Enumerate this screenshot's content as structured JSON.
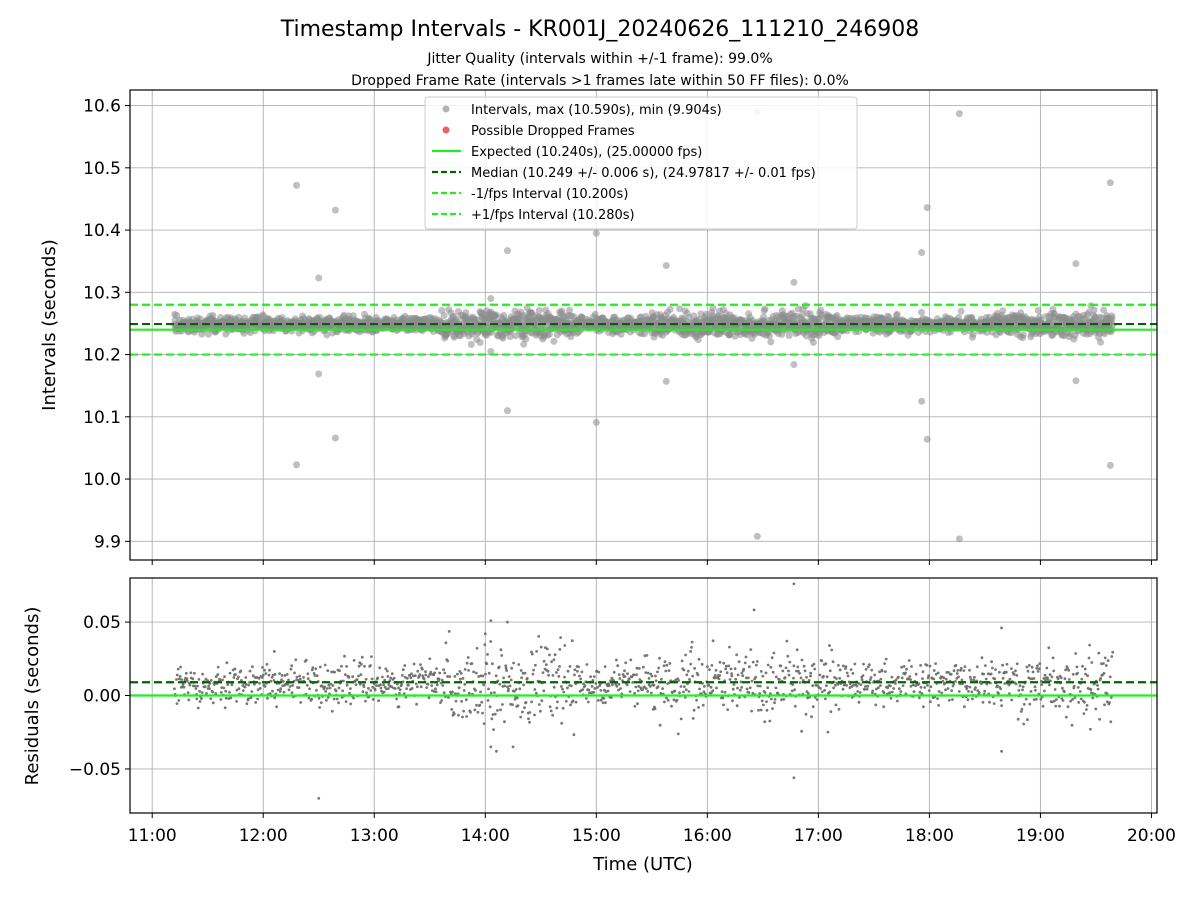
{
  "chart_data": [
    {
      "type": "scatter",
      "title": "Timestamp Intervals - KR001J_20240626_111210_246908",
      "subtitles": [
        "Jitter Quality (intervals within +/-1 frame): 99.0%",
        "Dropped Frame Rate (intervals >1 frames late within 50 FF files): 0.0%"
      ],
      "ylabel": "Intervals (seconds)",
      "xlim": [
        10.8,
        20.05
      ],
      "ylim": [
        9.87,
        10.625
      ],
      "yticks": [
        "9.9",
        "10.0",
        "10.1",
        "10.2",
        "10.3",
        "10.4",
        "10.5",
        "10.6"
      ],
      "ytick_values": [
        9.9,
        10.0,
        10.1,
        10.2,
        10.3,
        10.4,
        10.5,
        10.6
      ],
      "xtick_values": [
        11,
        12,
        13,
        14,
        15,
        16,
        17,
        18,
        19,
        20
      ],
      "grid": true,
      "legend_position": "top-center",
      "legend": [
        {
          "label": "Intervals, max (10.590s), min (9.904s)",
          "kind": "marker",
          "color": "#a0a0a0"
        },
        {
          "label": "Possible Dropped Frames",
          "kind": "marker",
          "color": "#ef6060"
        },
        {
          "label": "Expected (10.240s), (25.00000 fps)",
          "kind": "solid",
          "color": "#22ee22"
        },
        {
          "label": "Median (10.249 +/- 0.006 s), (24.97817 +/- 0.01 fps)",
          "kind": "dashed",
          "color": "#006400"
        },
        {
          "label": "-1/fps Interval (10.200s)",
          "kind": "dashed",
          "color": "#22ee22"
        },
        {
          "label": "+1/fps Interval (10.280s)",
          "kind": "dashed",
          "color": "#22ee22"
        }
      ],
      "lines": [
        {
          "name": "Expected",
          "y": 10.24,
          "style": "solid",
          "color": "#22ee22"
        },
        {
          "name": "Median",
          "y": 10.249,
          "style": "dashed",
          "color": "#006400"
        },
        {
          "name": "-1/fps Interval",
          "y": 10.2,
          "style": "dashed",
          "color": "#22ee22"
        },
        {
          "name": "+1/fps Interval",
          "y": 10.28,
          "style": "dashed",
          "color": "#22ee22"
        }
      ],
      "band": {
        "x_start": 11.2,
        "x_end": 19.65,
        "center": 10.248,
        "spread": 0.006
      },
      "outliers": [
        {
          "x": 12.3,
          "y": 10.472
        },
        {
          "x": 12.3,
          "y": 10.023
        },
        {
          "x": 12.5,
          "y": 10.323
        },
        {
          "x": 12.5,
          "y": 10.169
        },
        {
          "x": 12.65,
          "y": 10.432
        },
        {
          "x": 12.65,
          "y": 10.066
        },
        {
          "x": 14.05,
          "y": 10.29
        },
        {
          "x": 14.05,
          "y": 10.205
        },
        {
          "x": 14.2,
          "y": 10.367
        },
        {
          "x": 14.2,
          "y": 10.11
        },
        {
          "x": 15.0,
          "y": 10.395
        },
        {
          "x": 15.0,
          "y": 10.091
        },
        {
          "x": 15.63,
          "y": 10.343
        },
        {
          "x": 15.63,
          "y": 10.157
        },
        {
          "x": 16.45,
          "y": 10.59
        },
        {
          "x": 16.45,
          "y": 9.908
        },
        {
          "x": 16.78,
          "y": 10.316
        },
        {
          "x": 16.78,
          "y": 10.184
        },
        {
          "x": 17.93,
          "y": 10.364
        },
        {
          "x": 17.93,
          "y": 10.125
        },
        {
          "x": 17.98,
          "y": 10.436
        },
        {
          "x": 17.98,
          "y": 10.064
        },
        {
          "x": 18.27,
          "y": 10.587
        },
        {
          "x": 18.27,
          "y": 9.904
        },
        {
          "x": 19.32,
          "y": 10.346
        },
        {
          "x": 19.32,
          "y": 10.158
        },
        {
          "x": 19.63,
          "y": 10.476
        },
        {
          "x": 19.63,
          "y": 10.022
        }
      ]
    },
    {
      "type": "scatter",
      "xlabel": "Time (UTC)",
      "ylabel": "Residuals (seconds)",
      "xlim": [
        10.8,
        20.05
      ],
      "ylim": [
        -0.08,
        0.08
      ],
      "yticks": [
        "−0.05",
        "0.00",
        "0.05"
      ],
      "ytick_values": [
        -0.05,
        0.0,
        0.05
      ],
      "xticks": [
        "11:00",
        "12:00",
        "13:00",
        "14:00",
        "15:00",
        "16:00",
        "17:00",
        "18:00",
        "19:00",
        "20:00"
      ],
      "xtick_values": [
        11,
        12,
        13,
        14,
        15,
        16,
        17,
        18,
        19,
        20
      ],
      "grid": true,
      "lines": [
        {
          "name": "Expected",
          "y": 0.0,
          "style": "solid",
          "color": "#22ee22"
        },
        {
          "name": "Median",
          "y": 0.009,
          "style": "dashed",
          "color": "#006400"
        }
      ],
      "band": {
        "x_start": 11.2,
        "x_end": 19.65,
        "center": 0.008,
        "spread": 0.006
      },
      "outliers": [
        {
          "x": 12.1,
          "y": 0.03
        },
        {
          "x": 12.5,
          "y": -0.07
        },
        {
          "x": 14.05,
          "y": 0.051
        },
        {
          "x": 14.05,
          "y": -0.035
        },
        {
          "x": 14.1,
          "y": -0.038
        },
        {
          "x": 14.2,
          "y": 0.05
        },
        {
          "x": 14.25,
          "y": -0.035
        },
        {
          "x": 14.0,
          "y": 0.042
        },
        {
          "x": 16.78,
          "y": 0.076
        },
        {
          "x": 16.78,
          "y": -0.056
        },
        {
          "x": 17.1,
          "y": 0.034
        },
        {
          "x": 18.65,
          "y": 0.046
        },
        {
          "x": 18.65,
          "y": -0.038
        },
        {
          "x": 19.45,
          "y": -0.023
        },
        {
          "x": 15.85,
          "y": 0.03
        },
        {
          "x": 13.5,
          "y": 0.025
        }
      ]
    }
  ]
}
